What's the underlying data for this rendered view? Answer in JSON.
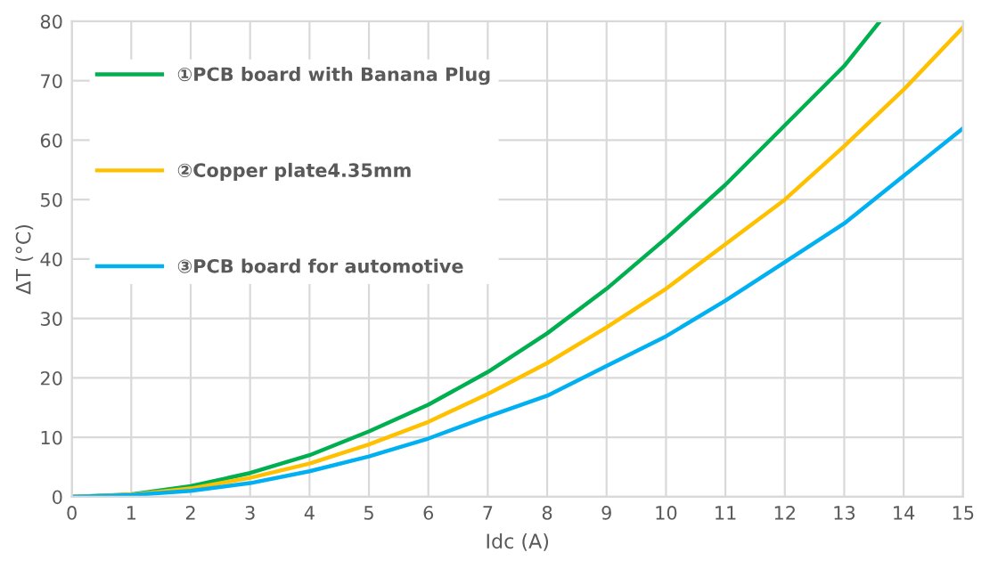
{
  "chart_data": {
    "type": "line",
    "xlabel": "Idc (A)",
    "ylabel": "ΔT (°C)",
    "xlim": [
      0,
      15
    ],
    "ylim": [
      0,
      80
    ],
    "xticks": [
      0,
      1,
      2,
      3,
      4,
      5,
      6,
      7,
      8,
      9,
      10,
      11,
      12,
      13,
      14,
      15
    ],
    "yticks": [
      0,
      10,
      20,
      30,
      40,
      50,
      60,
      70,
      80
    ],
    "grid": true,
    "legend": "top left",
    "marker": "none",
    "line_style": "solid",
    "series": [
      {
        "name": "①PCB board with Banana Plug",
        "color": "#00b050",
        "x": [
          0,
          1,
          2,
          3,
          4,
          5,
          6,
          7,
          8,
          9,
          10,
          11,
          12,
          13,
          13.6
        ],
        "values": [
          0,
          0.4,
          1.8,
          4,
          7,
          11,
          15.5,
          21,
          27.5,
          35,
          43.5,
          52.5,
          62.5,
          72.5,
          80
        ]
      },
      {
        "name": "②Copper plate4.35mm",
        "color": "#ffc000",
        "x": [
          0,
          1,
          2,
          3,
          4,
          5,
          6,
          7,
          8,
          9,
          10,
          11,
          12,
          13,
          14,
          15
        ],
        "values": [
          0,
          0.35,
          1.4,
          3.2,
          5.6,
          8.8,
          12.6,
          17.3,
          22.5,
          28.5,
          35,
          42.5,
          50,
          59,
          68.5,
          79
        ]
      },
      {
        "name": "③PCB board for automotive",
        "color": "#00b0f0",
        "x": [
          0,
          1,
          2,
          3,
          4,
          5,
          6,
          7,
          8,
          9,
          10,
          11,
          12,
          13,
          14,
          15
        ],
        "values": [
          0,
          0.3,
          1,
          2.3,
          4.3,
          6.8,
          9.8,
          13.5,
          17,
          22,
          27,
          33,
          39.5,
          46,
          54,
          62
        ]
      }
    ]
  }
}
